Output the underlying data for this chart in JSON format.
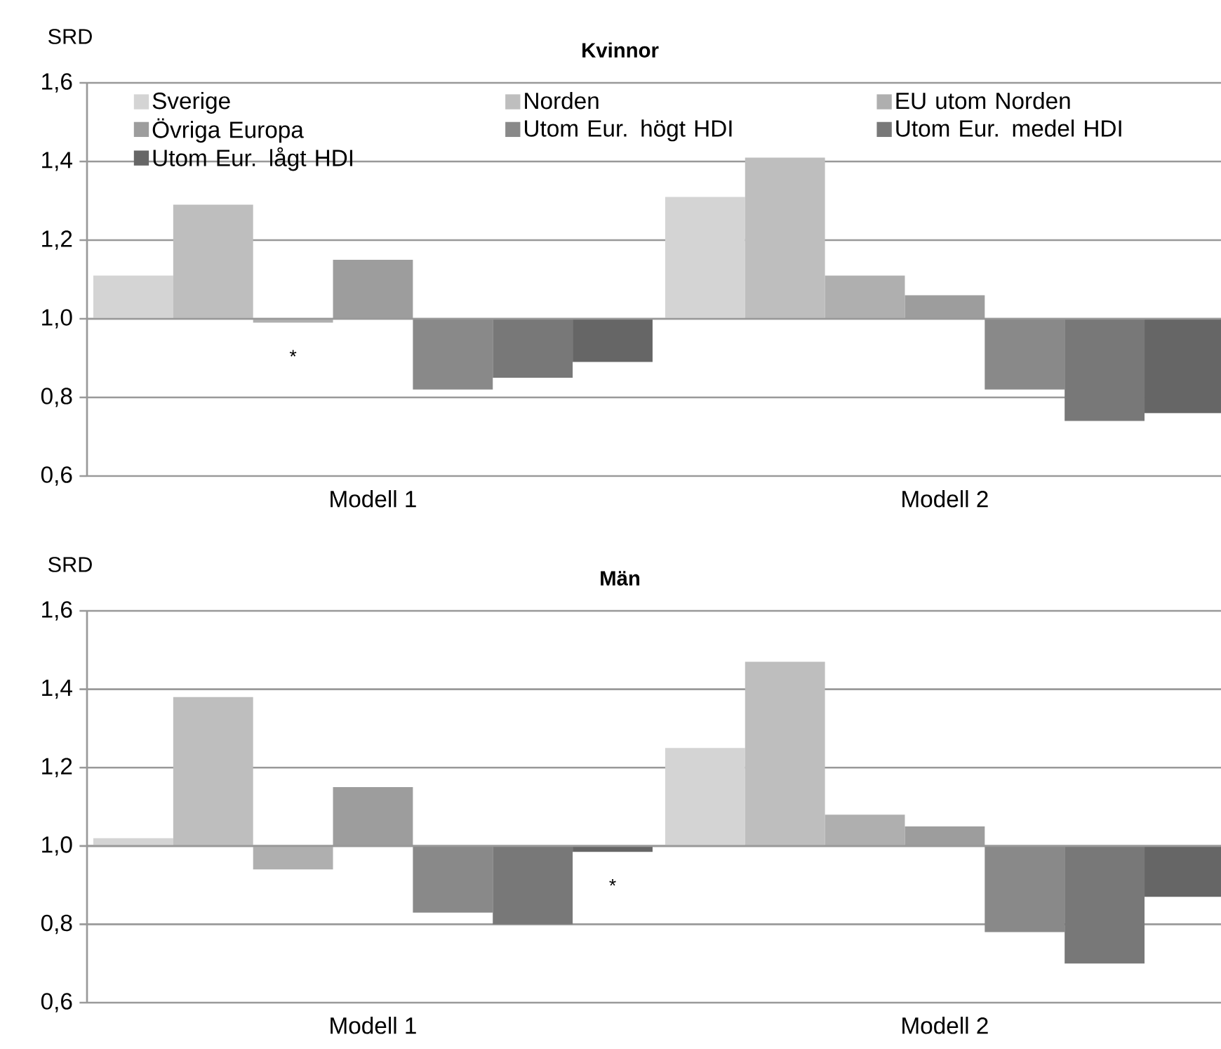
{
  "chart_data": [
    {
      "type": "bar",
      "title": "Kvinnor",
      "ylabel": "SRD",
      "categories": [
        "Modell 1",
        "Modell 2"
      ],
      "ylim": [
        0.6,
        1.6
      ],
      "yticks": [
        {
          "value": 0.6,
          "label": "0,6"
        },
        {
          "value": 0.8,
          "label": "0,8"
        },
        {
          "value": 1.0,
          "label": "1,0"
        },
        {
          "value": 1.2,
          "label": "1,2"
        },
        {
          "value": 1.4,
          "label": "1,4"
        },
        {
          "value": 1.6,
          "label": "1,6"
        }
      ],
      "grid": "y",
      "legend": "top",
      "series": [
        {
          "name": "Sverige",
          "color": "#d4d4d4",
          "base": [
            1.0,
            1.0
          ],
          "values": [
            0.11,
            0.31
          ]
        },
        {
          "name": "Norden",
          "color": "#bebebe",
          "base": [
            1.0,
            1.0
          ],
          "values": [
            0.29,
            0.41
          ]
        },
        {
          "name": "EU utom Norden",
          "color": "#afafaf",
          "base": [
            1.0,
            1.0
          ],
          "values": [
            -0.01,
            0.11
          ]
        },
        {
          "name": "Övriga Europa",
          "color": "#9d9d9d",
          "base": [
            1.0,
            1.0
          ],
          "values": [
            0.15,
            0.06
          ]
        },
        {
          "name": "Utom Eur. högt HDI",
          "color": "#898989",
          "base": [
            1.0,
            1.0
          ],
          "values": [
            -0.18,
            -0.18
          ]
        },
        {
          "name": "Utom Eur. medel HDI",
          "color": "#787878",
          "base": [
            1.0,
            1.0
          ],
          "values": [
            -0.15,
            -0.26
          ]
        },
        {
          "name": "Utom Eur. lågt HDI",
          "color": "#666666",
          "base": [
            1.0,
            1.0
          ],
          "values": [
            -0.11,
            -0.24
          ]
        }
      ],
      "annotations": [
        "*"
      ]
    },
    {
      "type": "bar",
      "title": "Män",
      "ylabel": "SRD",
      "categories": [
        "Modell 1",
        "Modell 2"
      ],
      "ylim": [
        0.6,
        1.6
      ],
      "yticks": [
        {
          "value": 0.6,
          "label": "0,6"
        },
        {
          "value": 0.8,
          "label": "0,8"
        },
        {
          "value": 1.0,
          "label": "1,0"
        },
        {
          "value": 1.2,
          "label": "1,2"
        },
        {
          "value": 1.4,
          "label": "1,4"
        },
        {
          "value": 1.6,
          "label": "1,6"
        }
      ],
      "grid": "y",
      "series": [
        {
          "color": "#d4d4d4",
          "base": [
            1.0,
            1.0
          ],
          "values": [
            0.02,
            0.25
          ]
        },
        {
          "color": "#bebebe",
          "base": [
            1.0,
            1.0
          ],
          "values": [
            0.38,
            0.47
          ]
        },
        {
          "color": "#afafaf",
          "base": [
            1.0,
            1.0
          ],
          "values": [
            -0.06,
            0.08
          ]
        },
        {
          "color": "#9d9d9d",
          "base": [
            1.0,
            1.0
          ],
          "values": [
            0.15,
            0.05
          ]
        },
        {
          "color": "#898989",
          "base": [
            1.0,
            1.0
          ],
          "values": [
            -0.17,
            -0.22
          ]
        },
        {
          "color": "#787878",
          "base": [
            1.0,
            1.0
          ],
          "values": [
            -0.2,
            -0.3
          ]
        },
        {
          "color": "#666666",
          "base": [
            1.0,
            1.0
          ],
          "values": [
            -0.015,
            -0.13
          ]
        }
      ],
      "annotations": [
        "*"
      ]
    }
  ]
}
